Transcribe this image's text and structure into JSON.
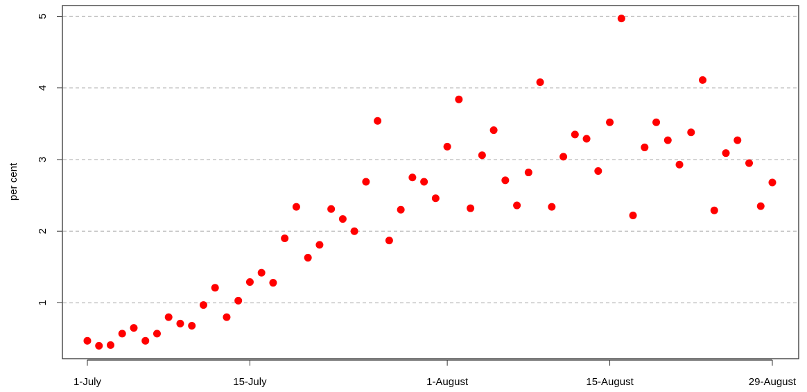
{
  "chart_data": {
    "type": "scatter",
    "y_label": "per cent",
    "categories": [
      "1-July",
      null,
      null,
      null,
      null,
      null,
      null,
      null,
      null,
      null,
      null,
      null,
      null,
      null,
      "15-July",
      null,
      null,
      null,
      null,
      null,
      null,
      null,
      null,
      null,
      null,
      null,
      null,
      null,
      null,
      null,
      null,
      "1-August",
      null,
      null,
      null,
      null,
      null,
      null,
      null,
      null,
      null,
      null,
      null,
      null,
      null,
      "15-August",
      null,
      null,
      null,
      null,
      null,
      null,
      null,
      null,
      null,
      null,
      null,
      null,
      null,
      "29-August"
    ],
    "values": [
      0.47,
      0.4,
      0.41,
      0.57,
      0.65,
      0.47,
      0.57,
      0.8,
      0.71,
      0.68,
      0.97,
      1.21,
      0.8,
      1.03,
      1.29,
      1.42,
      1.28,
      1.9,
      2.34,
      1.63,
      1.81,
      2.31,
      2.17,
      2.0,
      2.69,
      3.54,
      1.87,
      2.3,
      2.75,
      2.69,
      2.46,
      3.18,
      3.84,
      2.32,
      3.06,
      3.41,
      2.71,
      2.36,
      2.82,
      4.08,
      2.34,
      3.04,
      3.35,
      3.29,
      2.84,
      3.52,
      4.97,
      2.22,
      3.17,
      3.52,
      3.27,
      2.93,
      3.38,
      4.11,
      2.29,
      3.09,
      3.27,
      2.95,
      2.35,
      2.68
    ],
    "color": "#ff0000",
    "ylim": [
      0.22,
      5.15
    ],
    "yticks": [
      1,
      2,
      3,
      4,
      5
    ],
    "grid": true
  }
}
